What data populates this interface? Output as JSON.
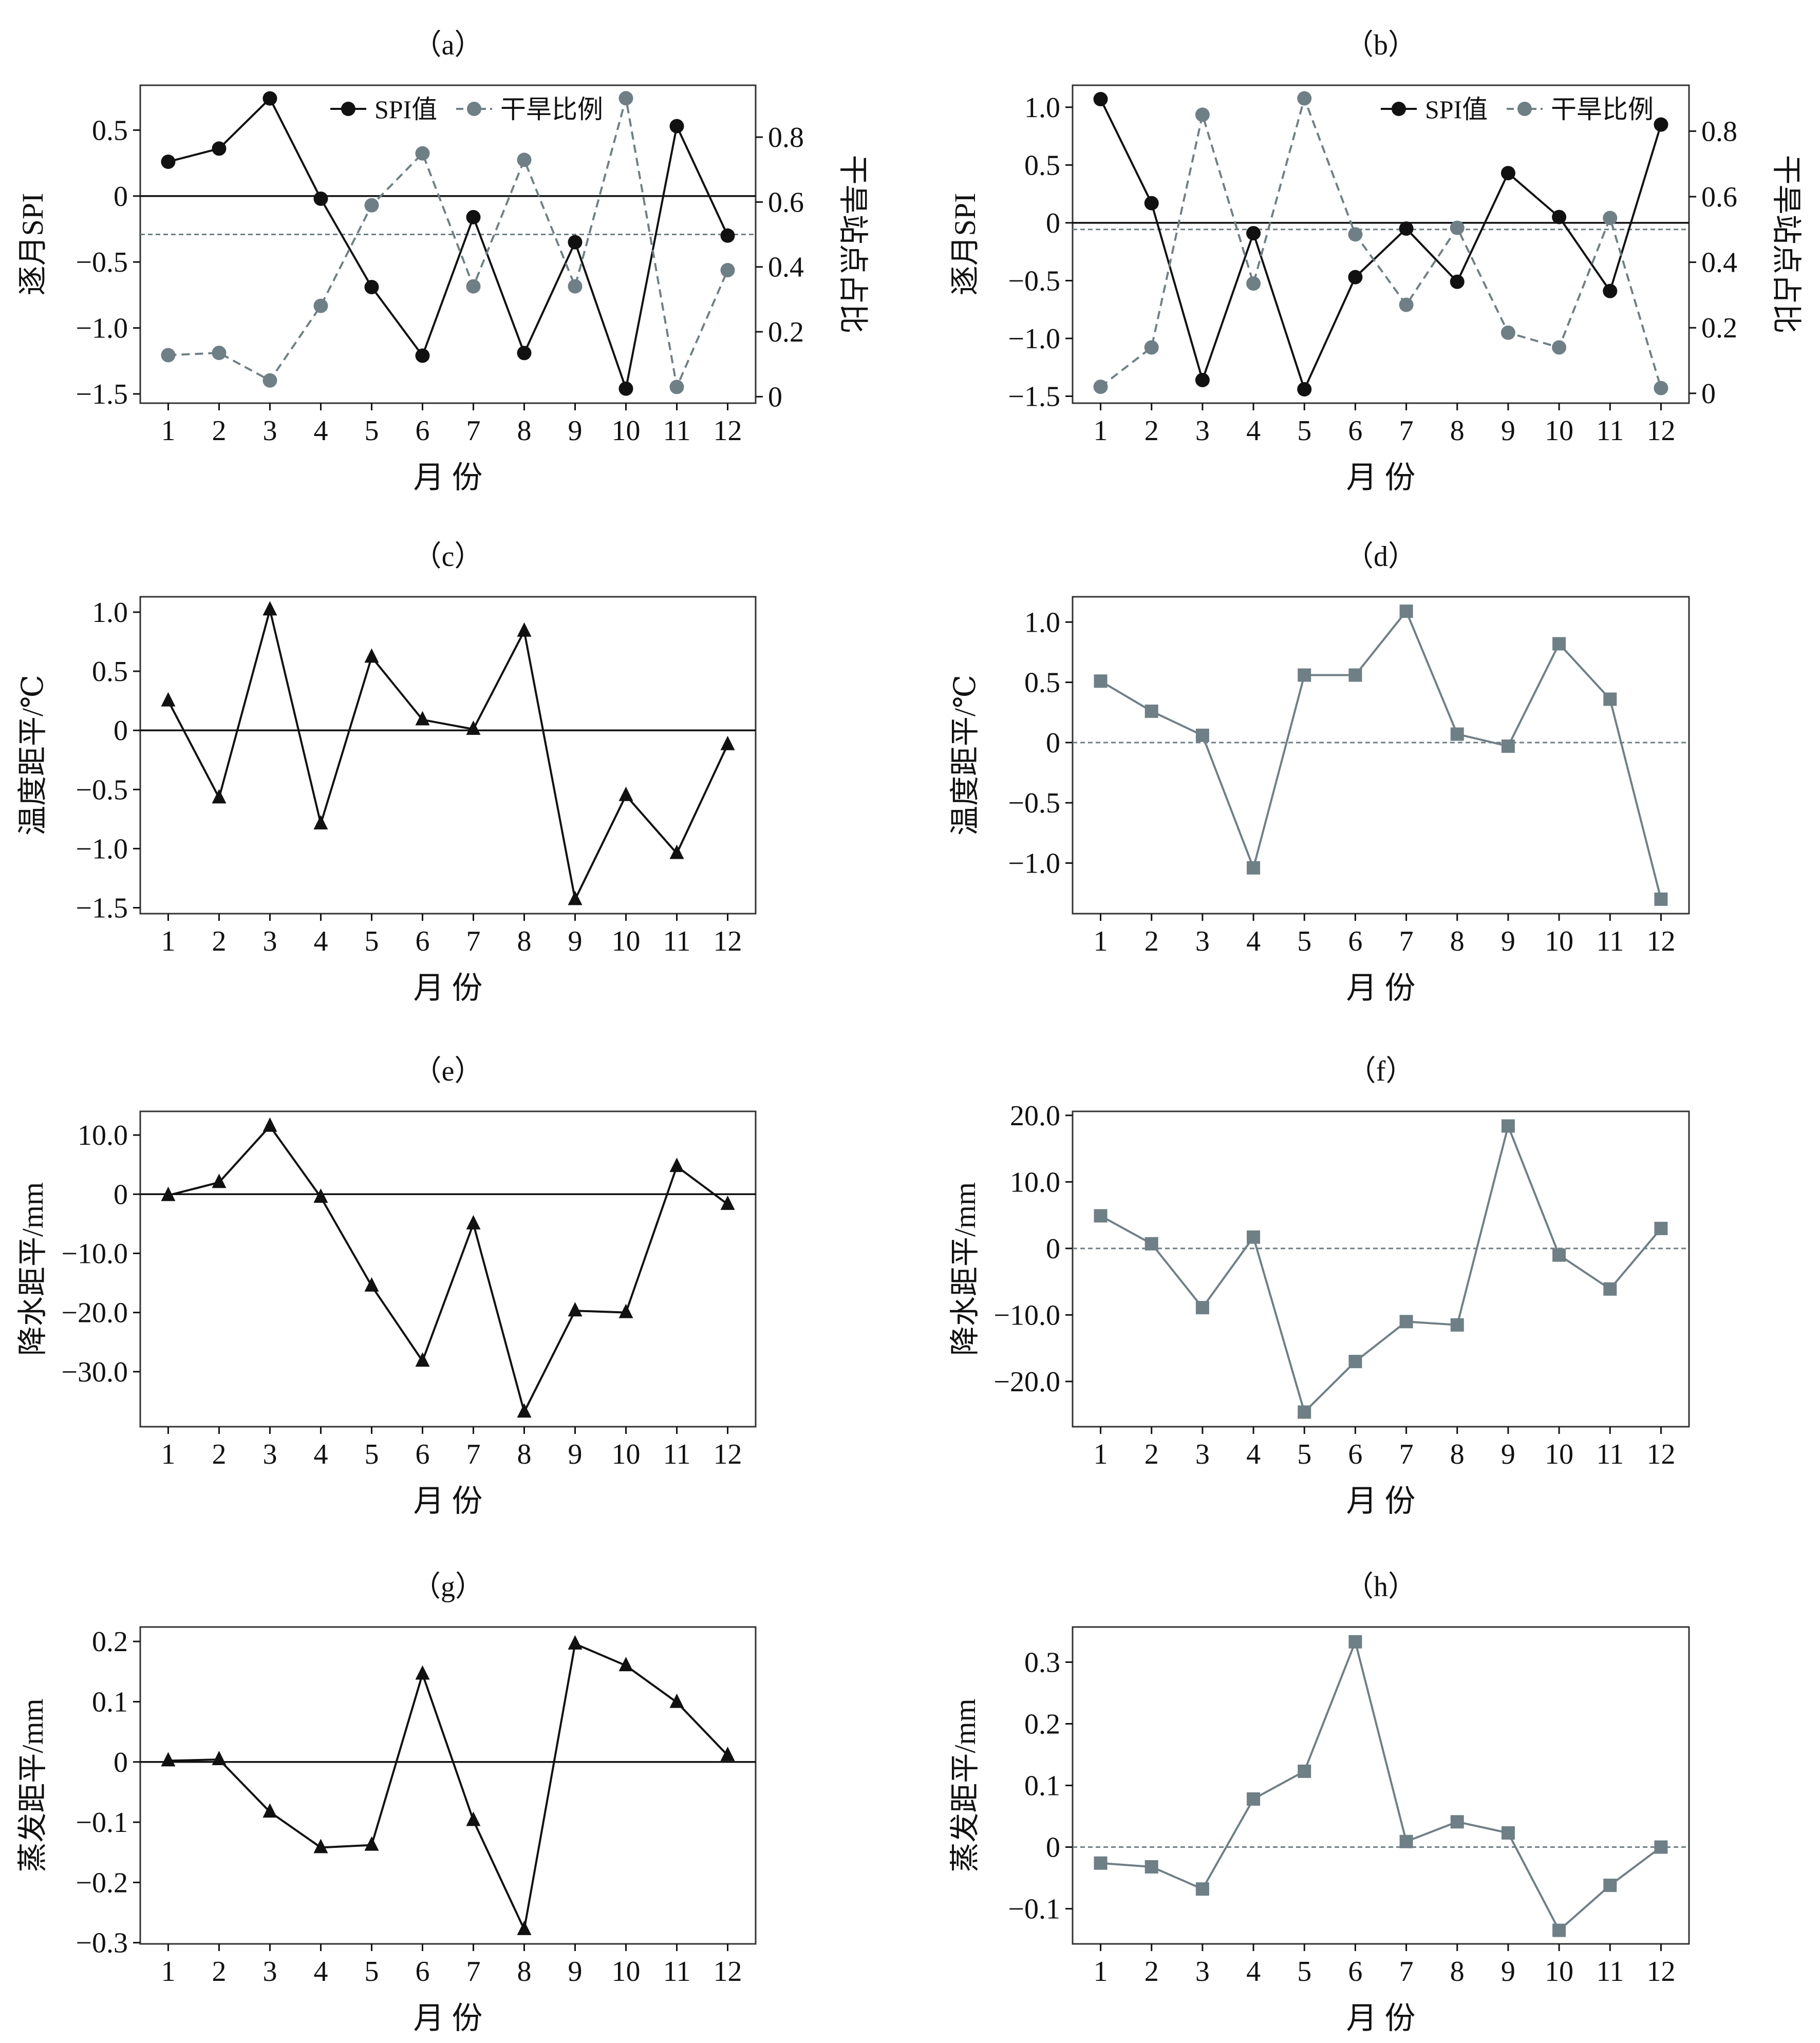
{
  "colors": {
    "black": "#111111",
    "gray": "#6f7f86"
  },
  "chart_data": [
    {
      "id": "a",
      "type": "line",
      "title": "（a）",
      "xlabel": "月 份",
      "ylabel": "逐月SPI",
      "y2label": "干旱站点占比",
      "categories": [
        "1",
        "2",
        "3",
        "4",
        "5",
        "6",
        "7",
        "8",
        "9",
        "10",
        "11",
        "12"
      ],
      "xlim": [
        0.45,
        12.55
      ],
      "ylim": [
        -1.57,
        0.84
      ],
      "y2lim": [
        -0.02,
        0.96
      ],
      "yticks": [
        0.5,
        0,
        -0.5,
        -1.0,
        -1.5
      ],
      "ytick_labels": [
        "0.5",
        "0",
        "−0.5",
        "−1.0",
        "−1.5"
      ],
      "y2ticks": [
        0,
        0.2,
        0.4,
        0.6,
        0.8
      ],
      "y2tick_labels": [
        "0",
        "0.2",
        "0.4",
        "0.6",
        "0.8"
      ],
      "series": [
        {
          "name": "SPI值",
          "axis": "left",
          "color": "#111111",
          "marker": "circle",
          "dash": false,
          "values": [
            0.26,
            0.36,
            0.74,
            -0.02,
            -0.69,
            -1.21,
            -0.16,
            -1.19,
            -0.35,
            -1.46,
            0.53,
            -0.3
          ]
        },
        {
          "name": "干旱比例",
          "axis": "right",
          "color": "#6f7f86",
          "marker": "circle",
          "dash": true,
          "values": [
            0.128,
            0.135,
            0.05,
            0.28,
            0.59,
            0.75,
            0.34,
            0.73,
            0.34,
            0.92,
            0.03,
            0.39
          ]
        }
      ],
      "hlines": [
        {
          "axis": "left",
          "value": 0,
          "style": "solid",
          "color": "#111111"
        },
        {
          "axis": "right",
          "value": 0.5,
          "style": "dashed",
          "color": "#6f7f86"
        }
      ],
      "legend": {
        "placement": "top-center",
        "entries": [
          "SPI值",
          "干旱比例"
        ]
      }
    },
    {
      "id": "b",
      "type": "line",
      "title": "（b）",
      "xlabel": "月 份",
      "ylabel": "逐月SPI",
      "y2label": "干旱站点占比",
      "categories": [
        "1",
        "2",
        "3",
        "4",
        "5",
        "6",
        "7",
        "8",
        "9",
        "10",
        "11",
        "12"
      ],
      "xlim": [
        0.45,
        12.55
      ],
      "ylim": [
        -1.56,
        1.19
      ],
      "y2lim": [
        -0.03,
        0.94
      ],
      "yticks": [
        1.0,
        0.5,
        0,
        -0.5,
        -1.0,
        -1.5
      ],
      "ytick_labels": [
        "1.0",
        "0.5",
        "0",
        "−0.5",
        "−1.0",
        "−1.5"
      ],
      "y2ticks": [
        0,
        0.2,
        0.4,
        0.6,
        0.8
      ],
      "y2tick_labels": [
        "0",
        "0.2",
        "0.4",
        "0.6",
        "0.8"
      ],
      "series": [
        {
          "name": "SPI值",
          "axis": "left",
          "color": "#111111",
          "marker": "circle",
          "dash": false,
          "values": [
            1.07,
            0.17,
            -1.36,
            -0.09,
            -1.44,
            -0.47,
            -0.05,
            -0.51,
            0.43,
            0.05,
            -0.59,
            0.85
          ]
        },
        {
          "name": "干旱比例",
          "axis": "right",
          "color": "#6f7f86",
          "marker": "circle",
          "dash": true,
          "values": [
            0.02,
            0.14,
            0.85,
            0.335,
            0.9,
            0.485,
            0.27,
            0.505,
            0.185,
            0.14,
            0.535,
            0.016
          ]
        }
      ],
      "hlines": [
        {
          "axis": "left",
          "value": 0,
          "style": "solid",
          "color": "#111111"
        },
        {
          "axis": "right",
          "value": 0.5,
          "style": "dashed",
          "color": "#6f7f86"
        }
      ],
      "legend": {
        "placement": "top-right",
        "entries": [
          "SPI值",
          "干旱比例"
        ]
      }
    },
    {
      "id": "c",
      "type": "line",
      "title": "（c）",
      "xlabel": "月 份",
      "ylabel": "温度距平/℃",
      "categories": [
        "1",
        "2",
        "3",
        "4",
        "5",
        "6",
        "7",
        "8",
        "9",
        "10",
        "11",
        "12"
      ],
      "xlim": [
        0.45,
        12.55
      ],
      "ylim": [
        -1.55,
        1.13
      ],
      "yticks": [
        1.0,
        0.5,
        0,
        -0.5,
        -1.0,
        -1.5
      ],
      "ytick_labels": [
        "1.0",
        "0.5",
        "0",
        "−0.5",
        "−1.0",
        "−1.5"
      ],
      "series": [
        {
          "name": "温度距平",
          "axis": "left",
          "color": "#111111",
          "marker": "triangle",
          "dash": false,
          "values": [
            0.25,
            -0.57,
            1.02,
            -0.79,
            0.62,
            0.09,
            0.01,
            0.84,
            -1.43,
            -0.55,
            -1.04,
            -0.12
          ]
        }
      ],
      "hlines": [
        {
          "axis": "left",
          "value": 0,
          "style": "solid",
          "color": "#111111"
        }
      ]
    },
    {
      "id": "d",
      "type": "line",
      "title": "（d）",
      "xlabel": "月 份",
      "ylabel": "温度距平/℃",
      "categories": [
        "1",
        "2",
        "3",
        "4",
        "5",
        "6",
        "7",
        "8",
        "9",
        "10",
        "11",
        "12"
      ],
      "xlim": [
        0.45,
        12.55
      ],
      "ylim": [
        -1.42,
        1.21
      ],
      "yticks": [
        1.0,
        0.5,
        0,
        -0.5,
        -1.0
      ],
      "ytick_labels": [
        "1.0",
        "0.5",
        "0",
        "−0.5",
        "−1.0"
      ],
      "series": [
        {
          "name": "温度距平",
          "axis": "left",
          "color": "#6f7f86",
          "marker": "square",
          "dash": false,
          "values": [
            0.51,
            0.26,
            0.06,
            -1.04,
            0.56,
            0.56,
            1.09,
            0.07,
            -0.03,
            0.82,
            0.36,
            -1.3
          ]
        }
      ],
      "hlines": [
        {
          "axis": "left",
          "value": 0,
          "style": "dashed",
          "color": "#6f7f86"
        }
      ]
    },
    {
      "id": "e",
      "type": "line",
      "title": "（e）",
      "xlabel": "月 份",
      "ylabel": "降水距平/mm",
      "categories": [
        "1",
        "2",
        "3",
        "4",
        "5",
        "6",
        "7",
        "8",
        "9",
        "10",
        "11",
        "12"
      ],
      "xlim": [
        0.45,
        12.55
      ],
      "ylim": [
        -39.3,
        14.0
      ],
      "yticks": [
        10,
        0,
        -10,
        -20,
        -30
      ],
      "ytick_labels": [
        "10.0",
        "0",
        "−10.0",
        "−20.0",
        "−30.0"
      ],
      "series": [
        {
          "name": "降水距平",
          "axis": "left",
          "color": "#111111",
          "marker": "triangle",
          "dash": false,
          "values": [
            -0.2,
            2.0,
            11.5,
            -0.5,
            -15.5,
            -28.2,
            -5.0,
            -36.8,
            -19.7,
            -20.0,
            4.7,
            -1.7
          ]
        }
      ],
      "hlines": [
        {
          "axis": "left",
          "value": 0,
          "style": "solid",
          "color": "#111111"
        }
      ]
    },
    {
      "id": "f",
      "type": "line",
      "title": "（f）",
      "xlabel": "月 份",
      "ylabel": "降水距平/mm",
      "categories": [
        "1",
        "2",
        "3",
        "4",
        "5",
        "6",
        "7",
        "8",
        "9",
        "10",
        "11",
        "12"
      ],
      "xlim": [
        0.45,
        12.55
      ],
      "ylim": [
        -26.8,
        20.6
      ],
      "yticks": [
        20,
        10,
        0,
        -10,
        -20
      ],
      "ytick_labels": [
        "20.0",
        "10.0",
        "0",
        "−10.0",
        "−20.0"
      ],
      "series": [
        {
          "name": "降水距平",
          "axis": "left",
          "color": "#6f7f86",
          "marker": "square",
          "dash": false,
          "values": [
            4.9,
            0.7,
            -8.9,
            1.7,
            -24.6,
            -17.0,
            -11.0,
            -11.5,
            18.4,
            -1.0,
            -6.1,
            3.0
          ]
        }
      ],
      "hlines": [
        {
          "axis": "left",
          "value": 0,
          "style": "dashed",
          "color": "#6f7f86"
        }
      ]
    },
    {
      "id": "g",
      "type": "line",
      "title": "（g）",
      "xlabel": "月 份",
      "ylabel": "蒸发距平/mm",
      "categories": [
        "1",
        "2",
        "3",
        "4",
        "5",
        "6",
        "7",
        "8",
        "9",
        "10",
        "11",
        "12"
      ],
      "xlim": [
        0.45,
        12.55
      ],
      "ylim": [
        -0.302,
        0.224
      ],
      "yticks": [
        0.2,
        0.1,
        0,
        -0.1,
        -0.2,
        -0.3
      ],
      "ytick_labels": [
        "0.2",
        "0.1",
        "0",
        "−0.1",
        "−0.2",
        "−0.3"
      ],
      "series": [
        {
          "name": "蒸发距平",
          "axis": "left",
          "color": "#111111",
          "marker": "triangle",
          "dash": false,
          "values": [
            0.002,
            0.004,
            -0.083,
            -0.142,
            -0.138,
            0.146,
            -0.097,
            -0.278,
            0.196,
            0.16,
            0.099,
            0.011
          ]
        }
      ],
      "hlines": [
        {
          "axis": "left",
          "value": 0,
          "style": "solid",
          "color": "#111111"
        }
      ]
    },
    {
      "id": "h",
      "type": "line",
      "title": "（h）",
      "xlabel": "月 份",
      "ylabel": "蒸发距平/mm",
      "categories": [
        "1",
        "2",
        "3",
        "4",
        "5",
        "6",
        "7",
        "8",
        "9",
        "10",
        "11",
        "12"
      ],
      "xlim": [
        0.45,
        12.55
      ],
      "ylim": [
        -0.157,
        0.357
      ],
      "yticks": [
        0.3,
        0.2,
        0.1,
        0,
        -0.1
      ],
      "ytick_labels": [
        "0.3",
        "0.2",
        "0.1",
        "0",
        "−0.1"
      ],
      "series": [
        {
          "name": "蒸发距平",
          "axis": "left",
          "color": "#6f7f86",
          "marker": "square",
          "dash": false,
          "values": [
            -0.026,
            -0.032,
            -0.068,
            0.078,
            0.123,
            0.333,
            0.009,
            0.041,
            0.023,
            -0.135,
            -0.062,
            0.0
          ]
        }
      ],
      "hlines": [
        {
          "axis": "left",
          "value": 0,
          "style": "dashed",
          "color": "#6f7f86"
        }
      ]
    }
  ]
}
